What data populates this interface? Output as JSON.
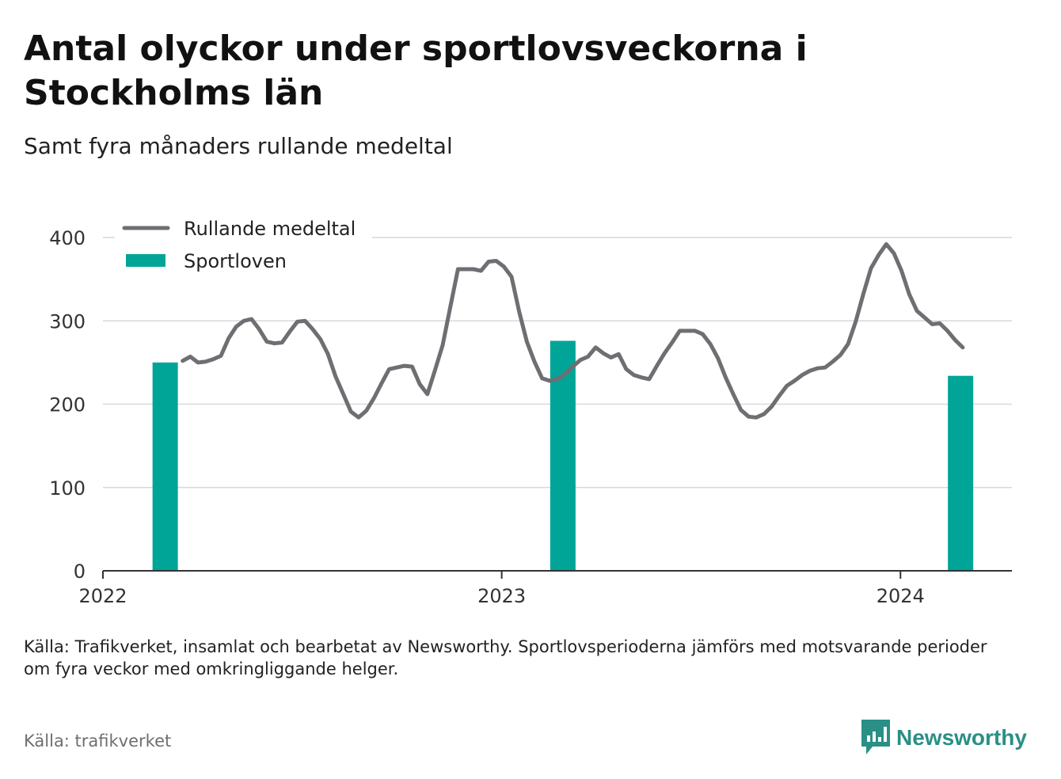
{
  "header": {
    "title": "Antal olyckor under sportlovsveckorna i Stockholms län",
    "subtitle": "Samt fyra månaders rullande medeltal"
  },
  "footer": {
    "note": "Källa: Trafikverket, insamlat och bearbetat av Newsworthy. Sportlovsperioderna jämförs med motsvarande perioder om fyra veckor med omkringliggande helger.",
    "source": "Källa: trafikverket",
    "brand": "Newsworthy"
  },
  "colors": {
    "line": "#6e6e73",
    "bar": "#00a598",
    "grid": "#d9d9d9",
    "axis": "#333333",
    "brand": "#2a8f86"
  },
  "chart_data": {
    "type": "bar+line",
    "x_axis": {
      "type": "date",
      "min": "2022-01-01",
      "max": "2024-04-12",
      "ticks": [
        "2022",
        "2023",
        "2024"
      ]
    },
    "y_axis": {
      "min": 0,
      "max": 400,
      "ticks": [
        0,
        100,
        200,
        300,
        400
      ]
    },
    "grid": true,
    "legend": {
      "position": "top-left",
      "entries": [
        {
          "label": "Rullande medeltal",
          "kind": "line"
        },
        {
          "label": "Sportloven",
          "kind": "bar"
        }
      ]
    },
    "bars": {
      "name": "Sportloven",
      "points": [
        {
          "date": "2022-02-27",
          "value": 250
        },
        {
          "date": "2023-02-26",
          "value": 276
        },
        {
          "date": "2024-02-25",
          "value": 234
        }
      ]
    },
    "line": {
      "name": "Rullande medeltal",
      "points": [
        [
          "2022-03-15",
          252
        ],
        [
          "2022-03-22",
          257
        ],
        [
          "2022-03-29",
          250
        ],
        [
          "2022-04-05",
          251
        ],
        [
          "2022-04-12",
          254
        ],
        [
          "2022-04-19",
          258
        ],
        [
          "2022-04-26",
          279
        ],
        [
          "2022-05-03",
          293
        ],
        [
          "2022-05-10",
          300
        ],
        [
          "2022-05-17",
          302
        ],
        [
          "2022-05-24",
          290
        ],
        [
          "2022-05-31",
          275
        ],
        [
          "2022-06-07",
          273
        ],
        [
          "2022-06-14",
          274
        ],
        [
          "2022-06-21",
          287
        ],
        [
          "2022-06-28",
          299
        ],
        [
          "2022-07-05",
          300
        ],
        [
          "2022-07-12",
          290
        ],
        [
          "2022-07-19",
          278
        ],
        [
          "2022-07-26",
          260
        ],
        [
          "2022-08-02",
          233
        ],
        [
          "2022-08-09",
          212
        ],
        [
          "2022-08-16",
          191
        ],
        [
          "2022-08-23",
          184
        ],
        [
          "2022-08-30",
          192
        ],
        [
          "2022-09-06",
          207
        ],
        [
          "2022-09-13",
          225
        ],
        [
          "2022-09-20",
          242
        ],
        [
          "2022-09-27",
          244
        ],
        [
          "2022-10-04",
          246
        ],
        [
          "2022-10-11",
          245
        ],
        [
          "2022-10-18",
          224
        ],
        [
          "2022-10-25",
          212
        ],
        [
          "2022-11-01",
          241
        ],
        [
          "2022-11-08",
          271
        ],
        [
          "2022-11-15",
          317
        ],
        [
          "2022-11-22",
          362
        ],
        [
          "2022-11-29",
          362
        ],
        [
          "2022-12-06",
          362
        ],
        [
          "2022-12-13",
          360
        ],
        [
          "2022-12-20",
          371
        ],
        [
          "2022-12-27",
          372
        ],
        [
          "2023-01-03",
          365
        ],
        [
          "2023-01-10",
          353
        ],
        [
          "2023-01-17",
          311
        ],
        [
          "2023-01-24",
          275
        ],
        [
          "2023-01-31",
          251
        ],
        [
          "2023-02-07",
          231
        ],
        [
          "2023-02-14",
          228
        ],
        [
          "2023-02-21",
          230
        ],
        [
          "2023-02-28",
          236
        ],
        [
          "2023-03-07",
          245
        ],
        [
          "2023-03-14",
          253
        ],
        [
          "2023-03-21",
          257
        ],
        [
          "2023-03-28",
          268
        ],
        [
          "2023-04-04",
          261
        ],
        [
          "2023-04-11",
          256
        ],
        [
          "2023-04-18",
          260
        ],
        [
          "2023-04-25",
          242
        ],
        [
          "2023-05-02",
          235
        ],
        [
          "2023-05-09",
          232
        ],
        [
          "2023-05-16",
          230
        ],
        [
          "2023-05-23",
          246
        ],
        [
          "2023-05-30",
          261
        ],
        [
          "2023-06-06",
          274
        ],
        [
          "2023-06-13",
          288
        ],
        [
          "2023-06-20",
          288
        ],
        [
          "2023-06-27",
          288
        ],
        [
          "2023-07-04",
          284
        ],
        [
          "2023-07-11",
          272
        ],
        [
          "2023-07-18",
          255
        ],
        [
          "2023-07-25",
          232
        ],
        [
          "2023-08-01",
          212
        ],
        [
          "2023-08-08",
          193
        ],
        [
          "2023-08-15",
          185
        ],
        [
          "2023-08-22",
          184
        ],
        [
          "2023-08-29",
          188
        ],
        [
          "2023-09-05",
          197
        ],
        [
          "2023-09-12",
          210
        ],
        [
          "2023-09-19",
          222
        ],
        [
          "2023-09-26",
          228
        ],
        [
          "2023-10-03",
          235
        ],
        [
          "2023-10-10",
          240
        ],
        [
          "2023-10-17",
          243
        ],
        [
          "2023-10-24",
          244
        ],
        [
          "2023-10-31",
          251
        ],
        [
          "2023-11-07",
          259
        ],
        [
          "2023-11-14",
          272
        ],
        [
          "2023-11-21",
          299
        ],
        [
          "2023-11-28",
          332
        ],
        [
          "2023-12-05",
          363
        ],
        [
          "2023-12-12",
          379
        ],
        [
          "2023-12-19",
          392
        ],
        [
          "2023-12-26",
          381
        ],
        [
          "2024-01-02",
          360
        ],
        [
          "2024-01-09",
          332
        ],
        [
          "2024-01-16",
          312
        ],
        [
          "2024-01-23",
          304
        ],
        [
          "2024-01-30",
          296
        ],
        [
          "2024-02-06",
          297
        ],
        [
          "2024-02-13",
          288
        ],
        [
          "2024-02-20",
          277
        ],
        [
          "2024-02-27",
          268
        ]
      ]
    }
  }
}
